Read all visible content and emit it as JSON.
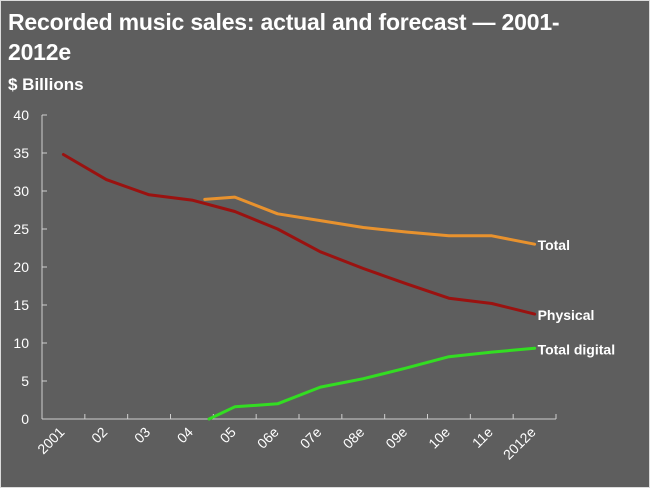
{
  "chart_data": {
    "type": "line",
    "title": "Recorded music sales: actual and forecast — 2001-2012e",
    "ylabel": "$ Billions",
    "xlabel": "",
    "ylim": [
      0,
      40
    ],
    "yticks": [
      "0",
      "5",
      "10",
      "15",
      "20",
      "25",
      "30",
      "35",
      "40"
    ],
    "categories": [
      "2001",
      "02",
      "03",
      "04",
      "05",
      "06e",
      "07e",
      "08e",
      "09e",
      "10e",
      "11e",
      "2012e"
    ],
    "grid": false,
    "legend": "inline-right",
    "series": [
      {
        "name": "Total",
        "color": "#e8922e",
        "points": [
          [
            3.8,
            28.9
          ],
          [
            4.5,
            29.2
          ],
          [
            5.5,
            27.0
          ],
          [
            6.5,
            26.1
          ],
          [
            7.5,
            25.2
          ],
          [
            8.5,
            24.6
          ],
          [
            9.5,
            24.1
          ],
          [
            10.5,
            24.1
          ],
          [
            11.5,
            23.0
          ]
        ]
      },
      {
        "name": "Physical",
        "color": "#9a1210",
        "points": [
          [
            0.5,
            34.8
          ],
          [
            1.5,
            31.5
          ],
          [
            2.5,
            29.5
          ],
          [
            3.5,
            28.8
          ],
          [
            4.5,
            27.3
          ],
          [
            5.5,
            25.0
          ],
          [
            6.5,
            22.0
          ],
          [
            7.5,
            19.8
          ],
          [
            8.5,
            17.8
          ],
          [
            9.5,
            15.9
          ],
          [
            10.5,
            15.2
          ],
          [
            11.5,
            13.8
          ]
        ]
      },
      {
        "name": "Total digital",
        "color": "#33dd22",
        "points": [
          [
            3.9,
            0.0
          ],
          [
            4.5,
            1.6
          ],
          [
            5.5,
            2.0
          ],
          [
            6.5,
            4.2
          ],
          [
            7.5,
            5.3
          ],
          [
            8.5,
            6.7
          ],
          [
            9.5,
            8.2
          ],
          [
            10.5,
            8.8
          ],
          [
            11.5,
            9.3
          ]
        ]
      }
    ]
  }
}
